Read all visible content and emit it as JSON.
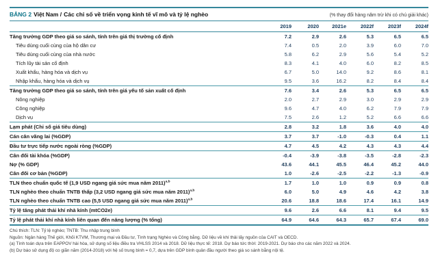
{
  "header": {
    "table_tag": "BẢNG 2",
    "country": "Việt Nam /",
    "title": "Các chỉ số về triển vọng kinh tế vĩ mô và tỷ lệ nghèo",
    "unit_note": "(% thay đổi hàng năm trừ khi có chú giải khác)"
  },
  "colors": {
    "accent_teal": "#35879b",
    "tag_teal": "#0c7489",
    "header_navy": "#123a5c",
    "number_navy": "#1f3d5c"
  },
  "table": {
    "columns": [
      "2019",
      "2020",
      "2021e",
      "2022f",
      "2023f",
      "2024f"
    ],
    "rows": [
      {
        "label": "Tăng trưởng GDP theo giá so sánh, tính trên giá thị trường cố định",
        "bold": true,
        "indent": false,
        "sup": "",
        "rule": false,
        "values": [
          "7.2",
          "2.9",
          "2.6",
          "5.3",
          "6.5",
          "6.5"
        ]
      },
      {
        "label": "Tiêu dùng cuối cùng của hộ dân cư",
        "bold": false,
        "indent": true,
        "sup": "",
        "rule": false,
        "values": [
          "7.4",
          "0.5",
          "2.0",
          "3.9",
          "6.0",
          "7.0"
        ]
      },
      {
        "label": "Tiêu dùng cuối cùng của nhà nước",
        "bold": false,
        "indent": true,
        "sup": "",
        "rule": false,
        "values": [
          "5.8",
          "6.2",
          "2.9",
          "5.6",
          "5.4",
          "5.2"
        ]
      },
      {
        "label": "Tích lũy tài sản cố định",
        "bold": false,
        "indent": true,
        "sup": "",
        "rule": false,
        "values": [
          "8.3",
          "4.1",
          "4.0",
          "6.0",
          "8.2",
          "8.5"
        ]
      },
      {
        "label": "Xuất khẩu, hàng hóa và dịch vụ",
        "bold": false,
        "indent": true,
        "sup": "",
        "rule": false,
        "values": [
          "6.7",
          "5.0",
          "14.0",
          "9.2",
          "8.6",
          "8.1"
        ]
      },
      {
        "label": "Nhập khẩu, hàng hóa và dịch vụ",
        "bold": false,
        "indent": true,
        "sup": "",
        "rule": true,
        "values": [
          "9.5",
          "3.6",
          "16.2",
          "8.2",
          "8.4",
          "8.4"
        ]
      },
      {
        "label": "Tăng trưởng GDP theo giá so sánh, tính trên giá yếu tố sản xuất cố định",
        "bold": true,
        "indent": false,
        "sup": "",
        "rule": false,
        "values": [
          "7.6",
          "3.4",
          "2.6",
          "5.3",
          "6.5",
          "6.5"
        ]
      },
      {
        "label": "Nông nghiệp",
        "bold": false,
        "indent": true,
        "sup": "",
        "rule": false,
        "values": [
          "2.0",
          "2.7",
          "2.9",
          "3.0",
          "2.9",
          "2.9"
        ]
      },
      {
        "label": "Công nghiệp",
        "bold": false,
        "indent": true,
        "sup": "",
        "rule": false,
        "values": [
          "9.6",
          "4.7",
          "4.0",
          "6.2",
          "7.9",
          "7.9"
        ]
      },
      {
        "label": "Dịch vụ",
        "bold": false,
        "indent": true,
        "sup": "",
        "rule": true,
        "values": [
          "7.5",
          "2.6",
          "1.2",
          "5.2",
          "6.6",
          "6.6"
        ]
      },
      {
        "label": "Lạm phát (Chỉ số giá tiêu dùng)",
        "bold": true,
        "indent": false,
        "sup": "",
        "rule": true,
        "values": [
          "2.8",
          "3.2",
          "1.8",
          "3.6",
          "4.0",
          "4.0"
        ]
      },
      {
        "label": "Cán cân vãng lai (%GDP)",
        "bold": true,
        "indent": false,
        "sup": "",
        "rule": true,
        "values": [
          "3.7",
          "3.7",
          "-1.0",
          "-0.3",
          "0.4",
          "1.1"
        ]
      },
      {
        "label": "Đầu tư trực tiếp nước ngoài ròng (%GDP)",
        "bold": true,
        "indent": false,
        "sup": "",
        "rule": true,
        "values": [
          "4.7",
          "4.5",
          "4.2",
          "4.3",
          "4.3",
          "4.4"
        ]
      },
      {
        "label": "Cân đối tài khóa (%GDP)",
        "bold": true,
        "indent": false,
        "sup": "",
        "rule": false,
        "values": [
          "-0.4",
          "-3.9",
          "-3.8",
          "-3.5",
          "-2.8",
          "-2.3"
        ]
      },
      {
        "label": "Nợ (% GDP)",
        "bold": true,
        "indent": false,
        "sup": "",
        "rule": false,
        "values": [
          "43.6",
          "44.1",
          "45.5",
          "46.4",
          "45.2",
          "44.0"
        ]
      },
      {
        "label": "Cân đối cơ bản (%GDP)",
        "bold": true,
        "indent": false,
        "sup": "",
        "rule": true,
        "values": [
          "1.0",
          "-2.6",
          "-2.5",
          "-2.2",
          "-1.3",
          "-0.9"
        ]
      },
      {
        "label": "TLN theo chuẩn quốc tế (1,9 USD ngang giá sức mua năm 2011)",
        "bold": true,
        "indent": false,
        "sup": "a,b",
        "rule": false,
        "values": [
          "1.7",
          "1.0",
          "1.0",
          "0.9",
          "0.9",
          "0.8"
        ]
      },
      {
        "label": "TLN nghèo theo chuẩn TNTB thấp (3,2 USD ngang giá sức mua năm 2011)",
        "bold": true,
        "indent": false,
        "sup": "a,b",
        "rule": false,
        "values": [
          "6.0",
          "5.0",
          "4.9",
          "4.6",
          "4.2",
          "3.8"
        ]
      },
      {
        "label": "TLN nghèo theo chuẩn TNTB cao (5,5 USD ngang giá sức mua năm 2011)",
        "bold": true,
        "indent": false,
        "sup": "a,b",
        "rule": true,
        "values": [
          "20.6",
          "18.8",
          "18.6",
          "17.4",
          "16.1",
          "14.9"
        ]
      },
      {
        "label": "Tỷ lệ tăng phát thải khí nhà kính (mtCO2e)",
        "bold": true,
        "indent": false,
        "sup": "",
        "rule": true,
        "values": [
          "9.6",
          "2.6",
          "6.6",
          "8.1",
          "9.4",
          "9.5"
        ]
      },
      {
        "label": "Tỷ lệ phát thải khí nhà kính liên quan đến năng lượng (% tổng)",
        "bold": true,
        "indent": false,
        "sup": "",
        "rule": false,
        "values": [
          "64.9",
          "64.6",
          "64.3",
          "65.7",
          "67.4",
          "69.0"
        ]
      }
    ]
  },
  "footer": {
    "legend": "Chú thích: TLN: Tỷ lệ nghèo; TNTB: Thu nhập trung bình",
    "source": "Nguồn: Ngân hàng Thế giới, Khối KTVM, Thương mại và Đầu tư, Tình trạng Nghèo và Công bằng. Dữ liệu về khí thải lấy nguồn của CAIT và OECD.",
    "note_a": "(a) Tính toán dựa trên EAPPOV hài hòa, sử dụng số liệu điều tra VHLSS 2014 và 2018. Dữ liệu thực tế: 2018. Dự báo tức thời: 2019-2021. Dự báo cho các năm 2022 và 2024.",
    "note_b": "(b) Dự báo sử dụng độ co giãn năm (2014-2018) với hệ số trung bình = 0,7, dựa trên GDP bình quân đầu người theo giá so sánh bằng nội tệ."
  }
}
